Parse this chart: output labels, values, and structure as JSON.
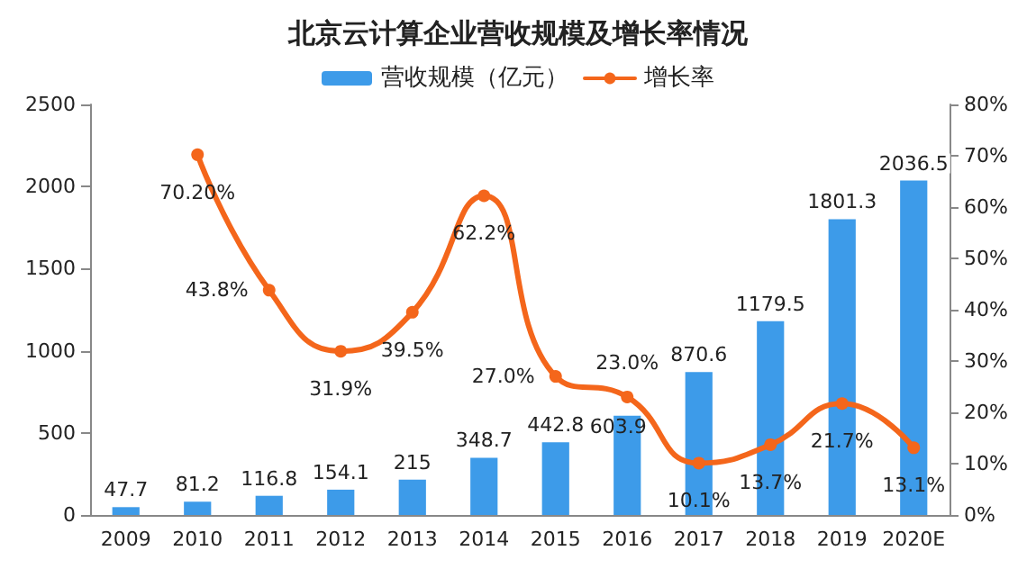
{
  "chart_data": {
    "type": "bar",
    "title": "北京云计算企业营收规模及增长率情况",
    "categories": [
      "2009",
      "2010",
      "2011",
      "2012",
      "2013",
      "2014",
      "2015",
      "2016",
      "2017",
      "2018",
      "2019",
      "2020E"
    ],
    "series": [
      {
        "name": "营收规模（亿元）",
        "type": "bar",
        "color": "#3d9be9",
        "values": [
          47.7,
          81.2,
          116.8,
          154.1,
          215,
          348.7,
          442.8,
          603.9,
          870.6,
          1179.5,
          1801.3,
          2036.5
        ],
        "value_labels": [
          "47.7",
          "81.2",
          "116.8",
          "154.1",
          "215",
          "348.7",
          "442.8",
          "603.9",
          "870.6",
          "1179.5",
          "1801.3",
          "2036.5"
        ]
      },
      {
        "name": "增长率",
        "type": "line",
        "axis": "y2",
        "color": "#f4661b",
        "values": [
          null,
          70.2,
          43.8,
          31.9,
          39.5,
          62.2,
          27.0,
          23.0,
          10.1,
          13.7,
          21.7,
          13.1
        ],
        "value_labels": [
          null,
          "70.20%",
          "43.8%",
          "31.9%",
          "39.5%",
          "62.2%",
          "27.0%",
          "23.0%",
          "10.1%",
          "13.7%",
          "21.7%",
          "13.1%"
        ]
      }
    ],
    "ylim": [
      0,
      2500
    ],
    "yticks": [
      0,
      500,
      1000,
      1500,
      2000,
      2500
    ],
    "y2lim": [
      0,
      80
    ],
    "y2ticks": [
      {
        "value": 0,
        "label": "0%"
      },
      {
        "value": 10,
        "label": "10%"
      },
      {
        "value": 20,
        "label": "20%"
      },
      {
        "value": 30,
        "label": "30%"
      },
      {
        "value": 40,
        "label": "40%"
      },
      {
        "value": 50,
        "label": "50%"
      },
      {
        "value": 60,
        "label": "60%"
      },
      {
        "value": 70,
        "label": "70%"
      },
      {
        "value": 80,
        "label": "80%"
      }
    ],
    "legend": "top",
    "grid": false,
    "marker": "circle",
    "line_style": "solid"
  }
}
